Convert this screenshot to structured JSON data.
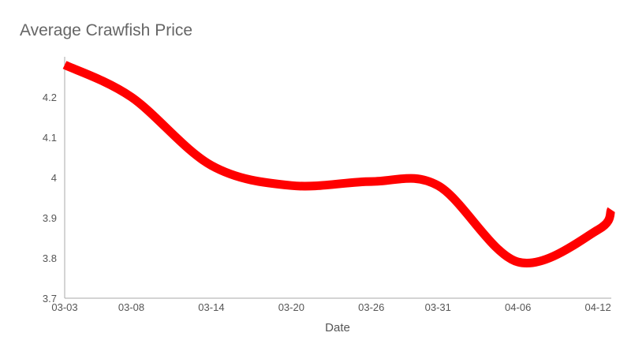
{
  "chart_data": {
    "type": "line",
    "title": "Average Crawfish Price",
    "xlabel": "Date",
    "ylabel": "",
    "ylim": [
      3.7,
      4.3
    ],
    "yticks": [
      "3.7",
      "3.8",
      "3.9",
      "4",
      "4.1",
      "4.2"
    ],
    "categories": [
      "03-03",
      "03-08",
      "03-14",
      "03-20",
      "03-26",
      "03-31",
      "04-06",
      "04-12"
    ],
    "series": [
      {
        "color": "#ff0000",
        "x": [
          "03-03",
          "03-08",
          "03-14",
          "03-20",
          "03-26",
          "03-31",
          "04-06",
          "04-12",
          "04-13"
        ],
        "values": [
          4.28,
          4.2,
          4.03,
          3.98,
          3.99,
          3.98,
          3.79,
          3.87,
          3.92
        ]
      }
    ],
    "grid": false,
    "legend": "none"
  }
}
